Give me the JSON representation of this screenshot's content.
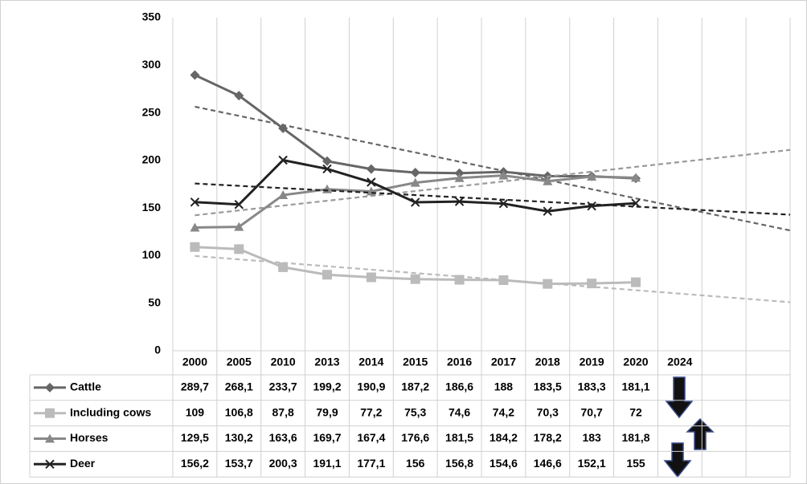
{
  "chart_data": {
    "type": "line",
    "categories": [
      "2000",
      "2005",
      "2010",
      "2013",
      "2014",
      "2015",
      "2016",
      "2017",
      "2018",
      "2019",
      "2020",
      "2024",
      null,
      null
    ],
    "series": [
      {
        "name": "Cattle",
        "color": "#666666",
        "marker": "diamond",
        "trendline_color": "#666666",
        "values": [
          289.7,
          268.1,
          233.7,
          199.2,
          190.9,
          187.2,
          186.6,
          188,
          183.5,
          183.3,
          181.1,
          null,
          null,
          null
        ],
        "value_labels": [
          "289,7",
          "268,1",
          "233,7",
          "199,2",
          "190,9",
          "187,2",
          "186,6",
          "188",
          "183,5",
          "183,3",
          "181,1",
          null,
          null,
          null
        ]
      },
      {
        "name": "Including cows",
        "color": "#bbbbbb",
        "marker": "square",
        "trendline_color": "#bbbbbb",
        "values": [
          109,
          106.8,
          87.8,
          79.9,
          77.2,
          75.3,
          74.6,
          74.2,
          70.3,
          70.7,
          72,
          null,
          null,
          null
        ],
        "value_labels": [
          "109",
          "106,8",
          "87,8",
          "79,9",
          "77,2",
          "75,3",
          "74,6",
          "74,2",
          "70,3",
          "70,7",
          "72",
          null,
          null,
          null
        ]
      },
      {
        "name": "Horses",
        "color": "#888888",
        "marker": "triangle",
        "trendline_color": "#999999",
        "values": [
          129.5,
          130.2,
          163.6,
          169.7,
          167.4,
          176.6,
          181.5,
          184.2,
          178.2,
          183,
          181.8,
          null,
          null,
          null
        ],
        "value_labels": [
          "129,5",
          "130,2",
          "163,6",
          "169,7",
          "167,4",
          "176,6",
          "181,5",
          "184,2",
          "178,2",
          "183",
          "181,8",
          null,
          null,
          null
        ]
      },
      {
        "name": "Deer",
        "color": "#222222",
        "marker": "x",
        "trendline_color": "#222222",
        "values": [
          156.2,
          153.7,
          200.3,
          191.1,
          177.1,
          156,
          156.8,
          154.6,
          146.6,
          152.1,
          155,
          null,
          null,
          null
        ],
        "value_labels": [
          "156,2",
          "153,7",
          "200,3",
          "191,1",
          "177,1",
          "156",
          "156,8",
          "154,6",
          "146,6",
          "152,1",
          "155",
          null,
          null,
          null
        ]
      }
    ],
    "ylim": [
      0,
      350
    ],
    "yticks": [
      0,
      50,
      100,
      150,
      200,
      250,
      300,
      350
    ],
    "trendlines": true,
    "vertical_grid": true,
    "legend": "table"
  }
}
